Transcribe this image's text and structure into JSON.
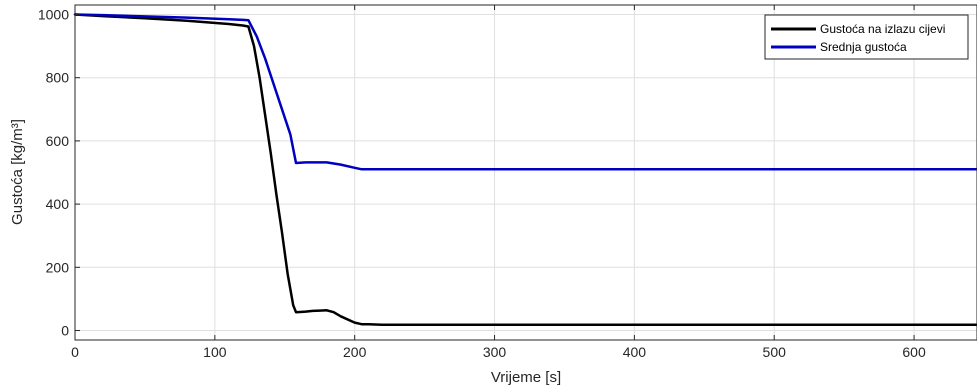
{
  "chart_data": {
    "type": "line",
    "title": "",
    "xlabel": "Vrijeme [s]",
    "ylabel": "Gustoća [kg/m³]",
    "xlim": [
      0,
      645
    ],
    "ylim": [
      -30,
      1030
    ],
    "x_ticks": [
      0,
      100,
      200,
      300,
      400,
      500,
      600
    ],
    "y_ticks": [
      0,
      200,
      400,
      600,
      800,
      1000
    ],
    "grid": true,
    "legend_position": "top-right",
    "series": [
      {
        "name": "Gustoća na izlazu cijevi",
        "color": "#000000",
        "x": [
          0,
          20,
          50,
          80,
          110,
          120,
          124,
          128,
          132,
          136,
          140,
          144,
          148,
          152,
          156,
          158,
          165,
          170,
          175,
          180,
          185,
          190,
          200,
          205,
          210,
          220,
          240,
          300,
          400,
          500,
          600,
          645
        ],
        "y": [
          1000,
          995,
          988,
          980,
          970,
          965,
          962,
          900,
          800,
          680,
          560,
          430,
          310,
          180,
          80,
          58,
          60,
          62,
          63,
          64,
          58,
          45,
          25,
          20,
          20,
          18,
          18,
          18,
          18,
          18,
          18,
          18
        ]
      },
      {
        "name": "Srednja gustoća",
        "color": "#0000c0",
        "x": [
          0,
          20,
          50,
          80,
          110,
          120,
          124,
          130,
          136,
          142,
          148,
          154,
          158,
          165,
          170,
          180,
          190,
          200,
          205,
          210,
          230,
          300,
          400,
          500,
          600,
          645
        ],
        "y": [
          1000,
          998,
          994,
          990,
          985,
          983,
          982,
          930,
          860,
          780,
          700,
          620,
          530,
          532,
          532,
          532,
          525,
          515,
          510,
          510,
          510,
          510,
          510,
          510,
          510,
          510
        ]
      }
    ]
  }
}
